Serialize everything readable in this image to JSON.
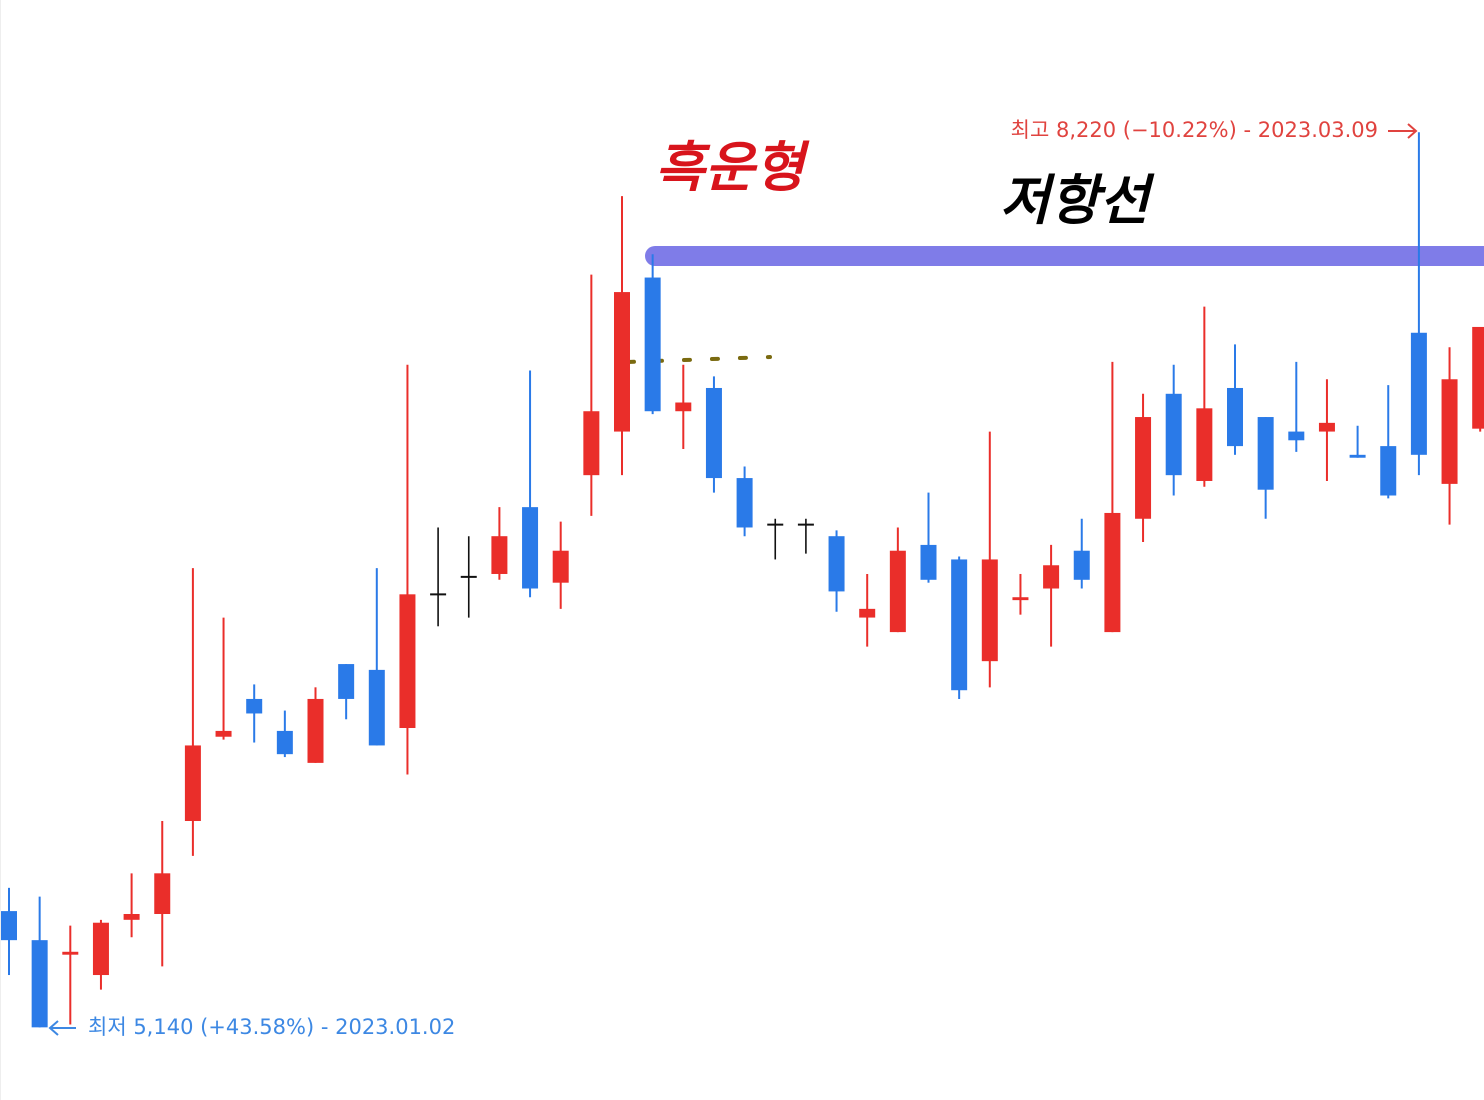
{
  "chart_data": {
    "type": "candlestick",
    "high_label": "최고 8,220 (−10.22%) - 2023.03.09",
    "low_label": "최저 5,140 (+43.58%) - 2023.01.02",
    "annotations": [
      "흑운형",
      "저항선"
    ],
    "up_color": "#ea2e2a",
    "down_color": "#2a7ae8",
    "flat_color": "#111111",
    "open": [
      5540,
      5440,
      5390,
      5320,
      5510,
      5530,
      5850,
      6140,
      6270,
      6160,
      6050,
      6390,
      6370,
      6170,
      6630,
      6690,
      6700,
      6930,
      6670,
      7040,
      7190,
      7720,
      7260,
      7340,
      7030,
      6870,
      6870,
      6830,
      6550,
      6500,
      6800,
      6750,
      6400,
      6610,
      6650,
      6780,
      6500,
      6890,
      7320,
      7020,
      7340,
      7240,
      7190,
      7190,
      7110,
      7140,
      7530,
      7010,
      7200
    ],
    "high": [
      5620,
      5590,
      5490,
      5510,
      5670,
      5850,
      6720,
      6550,
      6320,
      6230,
      6310,
      6390,
      6720,
      7420,
      6860,
      6830,
      6930,
      7400,
      6880,
      7730,
      8000,
      7800,
      7420,
      7380,
      7070,
      6890,
      6890,
      6850,
      6700,
      6860,
      6980,
      6760,
      7190,
      6700,
      6800,
      6890,
      7430,
      7320,
      7420,
      7620,
      7490,
      7240,
      7430,
      7370,
      7210,
      7350,
      8220,
      7480,
      7550
    ],
    "low": [
      5320,
      5140,
      5150,
      5270,
      5450,
      5350,
      5730,
      6130,
      6120,
      6070,
      6050,
      6200,
      6110,
      6010,
      6520,
      6550,
      6680,
      6620,
      6580,
      6900,
      7040,
      7250,
      7130,
      6980,
      6830,
      6750,
      6770,
      6570,
      6450,
      6500,
      6670,
      6270,
      6310,
      6560,
      6450,
      6650,
      6500,
      6810,
      6970,
      7000,
      7110,
      6890,
      7120,
      7020,
      7100,
      6960,
      7040,
      6870,
      7190
    ],
    "close": [
      5440,
      5140,
      5400,
      5500,
      5530,
      5670,
      6110,
      6160,
      6220,
      6080,
      6270,
      6270,
      6110,
      6630,
      6630,
      6690,
      6830,
      6650,
      6780,
      7260,
      7670,
      7260,
      7290,
      7030,
      6860,
      6870,
      6870,
      6640,
      6580,
      6780,
      6680,
      6300,
      6750,
      6620,
      6730,
      6680,
      6910,
      7240,
      7040,
      7270,
      7140,
      6990,
      7160,
      7220,
      7100,
      6970,
      7110,
      7370,
      7550
    ],
    "ylim": [
      4890,
      8675
    ]
  }
}
